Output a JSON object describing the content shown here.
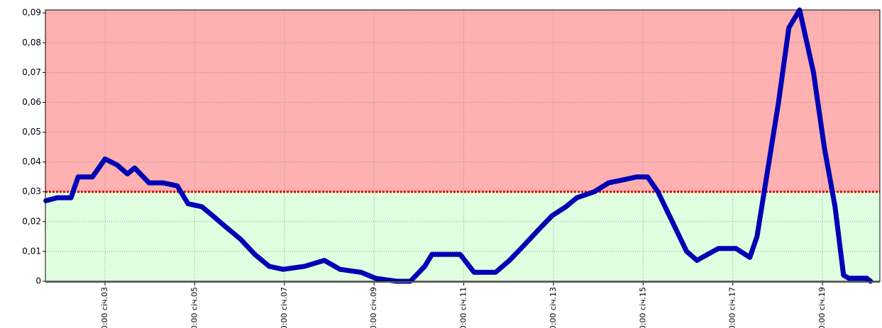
{
  "chart_data": {
    "type": "line",
    "x": [
      1.68,
      1.93,
      2.24,
      2.4,
      2.72,
      3.0,
      3.27,
      3.5,
      3.66,
      3.98,
      4.29,
      4.61,
      4.85,
      5.16,
      5.4,
      5.71,
      6.03,
      6.34,
      6.66,
      6.97,
      7.45,
      7.89,
      8.24,
      8.71,
      9.03,
      9.5,
      9.81,
      10.13,
      10.29,
      10.92,
      11.23,
      11.71,
      12.02,
      12.34,
      12.65,
      12.97,
      13.28,
      13.52,
      13.91,
      14.23,
      14.55,
      14.86,
      15.1,
      15.33,
      15.65,
      15.97,
      16.2,
      16.44,
      16.68,
      17.07,
      17.38,
      17.54,
      17.7,
      18.02,
      18.25,
      18.49,
      18.8,
      19.04,
      19.28,
      19.47,
      19.59,
      19.99,
      20.07
    ],
    "series": [
      {
        "color": "#0000b4",
        "values": [
          0.027,
          0.028,
          0.028,
          0.035,
          0.035,
          0.041,
          0.039,
          0.036,
          0.038,
          0.033,
          0.033,
          0.032,
          0.026,
          0.025,
          0.022,
          0.018,
          0.014,
          0.009,
          0.005,
          0.004,
          0.005,
          0.007,
          0.004,
          0.003,
          0.001,
          0.0,
          0.0,
          0.005,
          0.009,
          0.009,
          0.003,
          0.003,
          0.007,
          0.012,
          0.017,
          0.022,
          0.025,
          0.028,
          0.03,
          0.033,
          0.034,
          0.035,
          0.035,
          0.03,
          0.02,
          0.01,
          0.007,
          0.009,
          0.011,
          0.011,
          0.008,
          0.015,
          0.03,
          0.06,
          0.085,
          0.091,
          0.07,
          0.045,
          0.025,
          0.002,
          0.001,
          0.001,
          0.0
        ]
      }
    ],
    "threshold": 0.03,
    "threshold_color": "#e00000",
    "above_color": "#ffb0b0",
    "below_color": "#e0ffe0",
    "xlim": [
      1.67,
      20.28
    ],
    "xticks": [
      {
        "value": 3,
        "label": "00:00 січ.03"
      },
      {
        "value": 5,
        "label": "00:00 січ.05"
      },
      {
        "value": 7,
        "label": "00:00 січ.07"
      },
      {
        "value": 9,
        "label": "00:00 січ.09"
      },
      {
        "value": 11,
        "label": "00:00 січ.11"
      },
      {
        "value": 13,
        "label": "00:00 січ.13"
      },
      {
        "value": 15,
        "label": "00:00 січ.15"
      },
      {
        "value": 17,
        "label": "00:00 січ.17"
      },
      {
        "value": 19,
        "label": "00:00 січ.19"
      }
    ],
    "ylim": [
      0,
      0.091
    ],
    "yticks": [
      0,
      {
        "value": 0.01,
        "label": "0,01"
      },
      {
        "value": 0.02,
        "label": "0,02"
      },
      {
        "value": 0.03,
        "label": "0,03"
      },
      {
        "value": 0.04,
        "label": "0,04"
      },
      {
        "value": 0.05,
        "label": "0,05"
      },
      {
        "value": 0.06,
        "label": "0,06"
      },
      {
        "value": 0.07,
        "label": "0,07"
      },
      {
        "value": 0.08,
        "label": "0,08"
      },
      {
        "value": 0.09,
        "label": "0,09"
      }
    ],
    "grid": true
  }
}
